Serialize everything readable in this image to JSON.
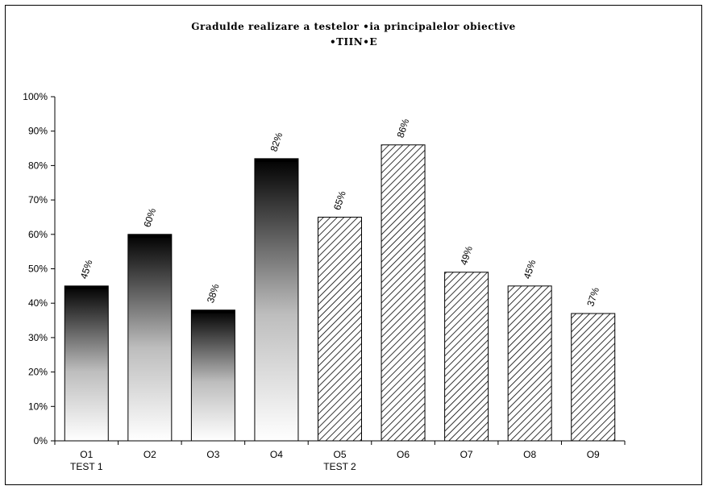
{
  "chart_data": {
    "type": "bar",
    "title": "Gradulde realizare a testelor •ia principalelor obiective",
    "subtitle": "•TIIN•E",
    "categories": [
      "O1",
      "O2",
      "O3",
      "O4",
      "O5",
      "O6",
      "O7",
      "O8",
      "O9"
    ],
    "groups": [
      {
        "label": "TEST 1",
        "categories": [
          "O1",
          "O2",
          "O3",
          "O4"
        ]
      },
      {
        "label": "TEST 2",
        "categories": [
          "O5",
          "O6",
          "O7",
          "O8",
          "O9"
        ]
      }
    ],
    "series": [
      {
        "name": "",
        "values": [
          45,
          60,
          38,
          82,
          65,
          86,
          49,
          45,
          37
        ]
      }
    ],
    "data_labels": [
      "45%",
      "60%",
      "38%",
      "82%",
      "65%",
      "86%",
      "49%",
      "45%",
      "37%"
    ],
    "y_ticks": [
      "0%",
      "10%",
      "20%",
      "30%",
      "40%",
      "50%",
      "60%",
      "70%",
      "80%",
      "90%",
      "100%"
    ],
    "ylim": [
      0,
      100
    ],
    "xlabel": "",
    "ylabel": "",
    "grid": false,
    "legend": "none",
    "styles": {
      "test1_fill": "gradient black to white (top to bottom)",
      "test2_fill": "diagonal hatch"
    },
    "colors": {
      "bar_dark": "#000000",
      "bar_light": "#ffffff",
      "axis": "#000000"
    }
  }
}
